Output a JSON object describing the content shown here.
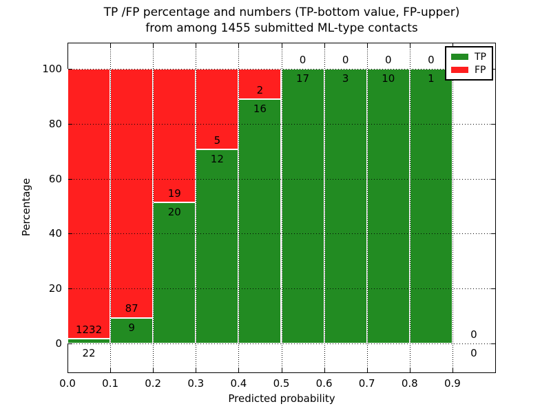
{
  "title": {
    "line1": "TP /FP percentage and numbers (TP-bottom value, FP-upper)",
    "line2": "from among 1455 submitted ML-type contacts"
  },
  "chart_data": {
    "type": "bar",
    "stacked": true,
    "percentage_normalized": true,
    "title": "TP /FP percentage and numbers (TP-bottom value, FP-upper)\nfrom among 1455 submitted ML-type contacts",
    "total_contacts": 1455,
    "xlabel": "Predicted probability",
    "ylabel": "Percentage",
    "x_tick_labels": [
      "0.0",
      "0.1",
      "0.2",
      "0.3",
      "0.4",
      "0.5",
      "0.6",
      "0.7",
      "0.8",
      "0.9"
    ],
    "y_ticks": [
      0,
      20,
      40,
      60,
      80,
      100
    ],
    "xlim": [
      0.0,
      1.0
    ],
    "grid": "dotted",
    "bins": [
      {
        "x0": "0.0",
        "x1": "0.1",
        "tp": 22,
        "fp": 1232
      },
      {
        "x0": "0.1",
        "x1": "0.2",
        "tp": 9,
        "fp": 87
      },
      {
        "x0": "0.2",
        "x1": "0.3",
        "tp": 20,
        "fp": 19
      },
      {
        "x0": "0.3",
        "x1": "0.4",
        "tp": 12,
        "fp": 5
      },
      {
        "x0": "0.4",
        "x1": "0.5",
        "tp": 16,
        "fp": 2
      },
      {
        "x0": "0.5",
        "x1": "0.6",
        "tp": 17,
        "fp": 0
      },
      {
        "x0": "0.6",
        "x1": "0.7",
        "tp": 3,
        "fp": 0
      },
      {
        "x0": "0.7",
        "x1": "0.8",
        "tp": 10,
        "fp": 0
      },
      {
        "x0": "0.8",
        "x1": "0.9",
        "tp": 1,
        "fp": 0
      },
      {
        "x0": "0.9",
        "x1": "1.0",
        "tp": 0,
        "fp": 0
      }
    ],
    "tp_percentages": [
      1.75,
      9.38,
      51.28,
      70.59,
      88.89,
      100.0,
      100.0,
      100.0,
      100.0,
      null
    ],
    "series": [
      {
        "name": "TP",
        "color": "#228B22"
      },
      {
        "name": "FP",
        "color": "#FF1F1F"
      }
    ],
    "legend": {
      "position": "upper right",
      "entries": [
        "TP",
        "FP"
      ]
    }
  },
  "colors": {
    "tp_green": "#228B22",
    "fp_red": "#FF1F1F",
    "grid": "#000000",
    "background": "#FFFFFF"
  }
}
